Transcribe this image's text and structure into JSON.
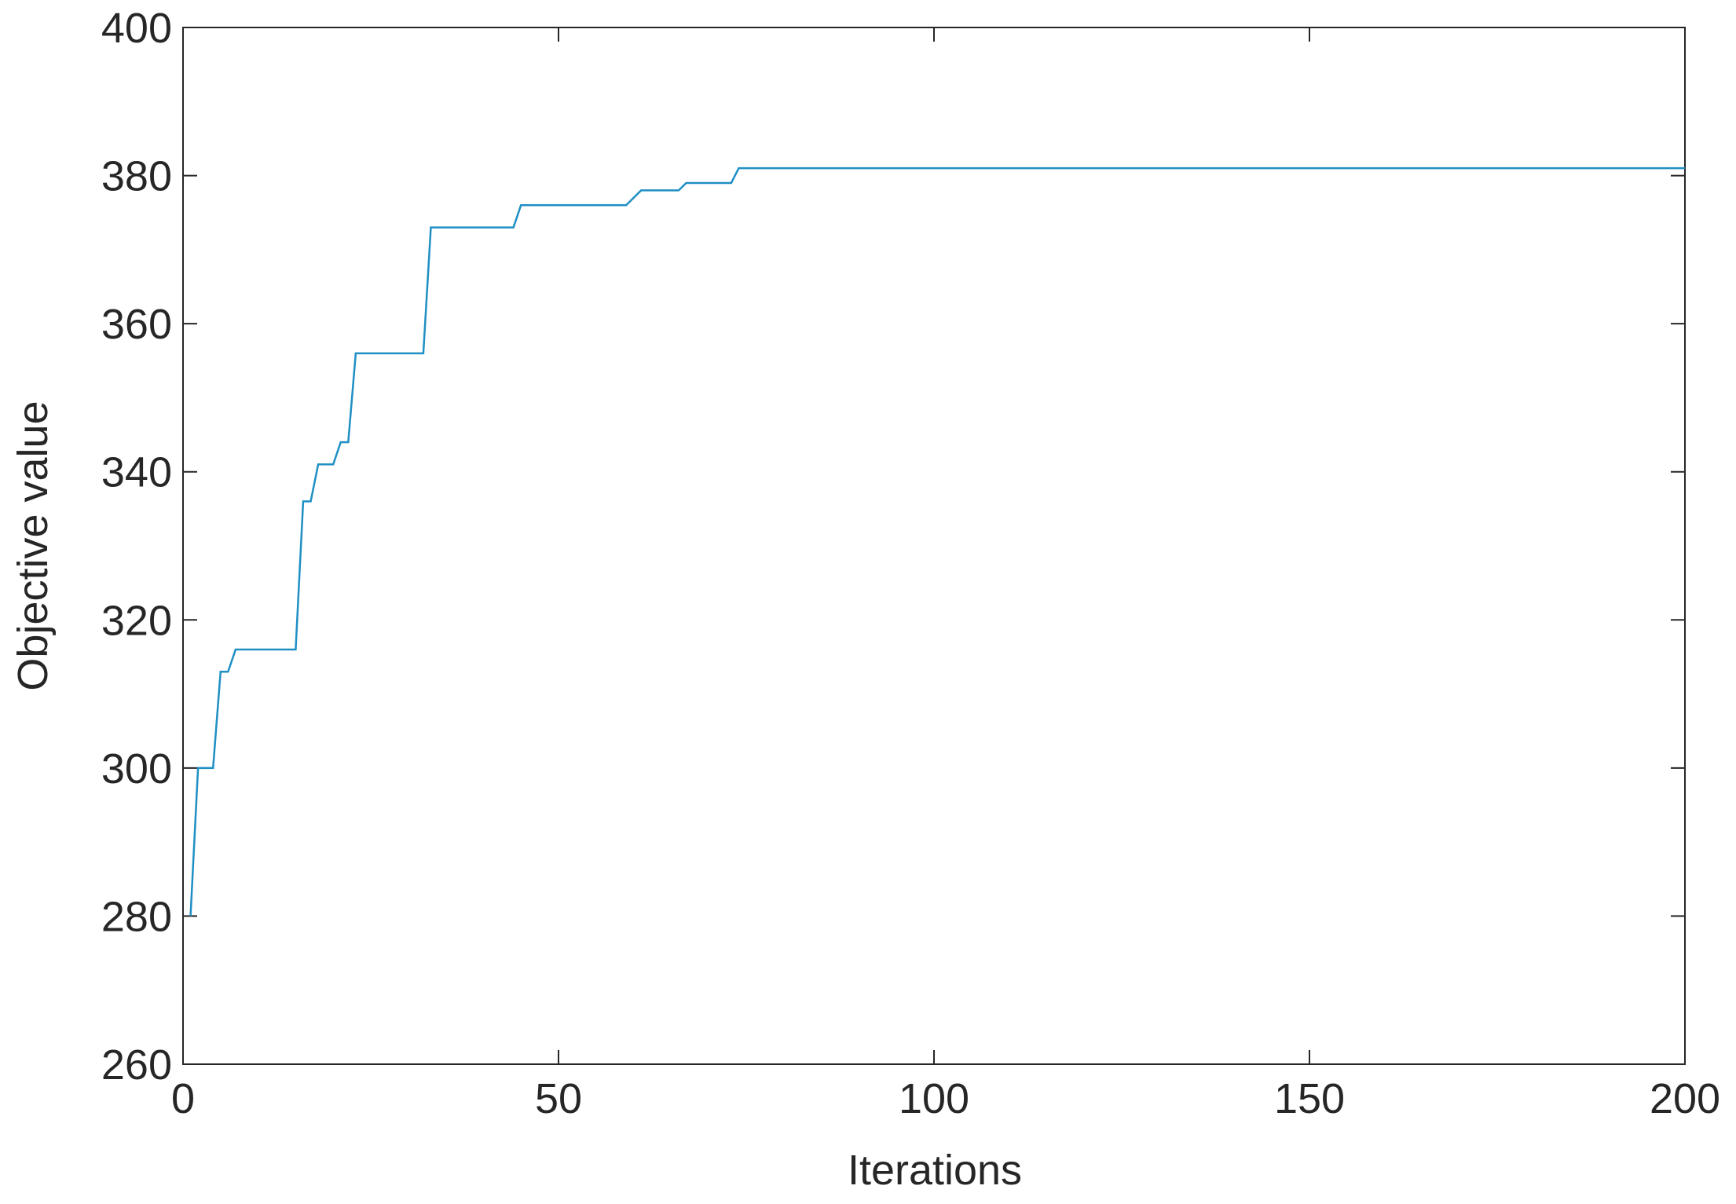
{
  "chart_data": {
    "type": "line",
    "x_label": "Iterations",
    "y_label": "Objective  value",
    "x": [
      1,
      2,
      4,
      5,
      6,
      7,
      15,
      16,
      17,
      18,
      20,
      21,
      22,
      23,
      32,
      33,
      44,
      45,
      59,
      61,
      66,
      67,
      73,
      74,
      200
    ],
    "series": [
      {
        "color": "#1f8fc4",
        "values": [
          280,
          300,
          300,
          313,
          313,
          316,
          316,
          336,
          336,
          341,
          341,
          344,
          344,
          356,
          356,
          373,
          373,
          376,
          376,
          378,
          378,
          379,
          379,
          381,
          381
        ]
      }
    ],
    "xlim": [
      0,
      200
    ],
    "xticks": [
      0,
      50,
      100,
      150,
      200
    ],
    "ylim": [
      260,
      400
    ],
    "yticks": [
      260,
      280,
      300,
      320,
      340,
      360,
      380,
      400
    ]
  }
}
